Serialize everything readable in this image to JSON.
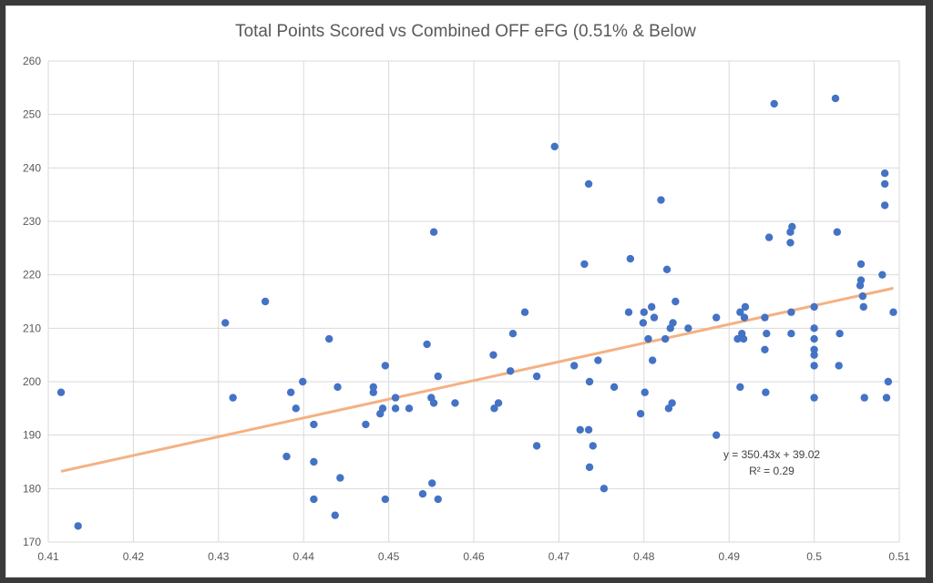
{
  "chart_data": {
    "type": "scatter",
    "title": "Total Points Scored vs Combined OFF eFG (0.51% & Below",
    "xlabel": "",
    "ylabel": "",
    "xlim": [
      0.41,
      0.51
    ],
    "ylim": [
      170,
      260
    ],
    "x_ticks": [
      0.41,
      0.42,
      0.43,
      0.44,
      0.45,
      0.46,
      0.47,
      0.48,
      0.49,
      0.5,
      0.51
    ],
    "x_tick_labels": [
      "0.41",
      "0.42",
      "0.43",
      "0.44",
      "0.45",
      "0.46",
      "0.47",
      "0.48",
      "0.49",
      "0.5",
      "0.51"
    ],
    "y_ticks": [
      170,
      180,
      190,
      200,
      210,
      220,
      230,
      240,
      250,
      260
    ],
    "y_tick_labels": [
      "170",
      "180",
      "190",
      "200",
      "210",
      "220",
      "230",
      "240",
      "250",
      "260"
    ],
    "grid": true,
    "point_color": "#4472c4",
    "trendline": {
      "slope": 350.43,
      "intercept": 39.02,
      "color": "#f4b183",
      "equation_label": "y = 350.43x + 39.02",
      "r2_label": "R² = 0.29"
    },
    "points": [
      [
        0.4115,
        198
      ],
      [
        0.4135,
        173
      ],
      [
        0.4308,
        211
      ],
      [
        0.4317,
        197
      ],
      [
        0.4355,
        215
      ],
      [
        0.438,
        186
      ],
      [
        0.4385,
        198
      ],
      [
        0.4391,
        195
      ],
      [
        0.4399,
        200
      ],
      [
        0.4412,
        192
      ],
      [
        0.4412,
        185
      ],
      [
        0.4412,
        178
      ],
      [
        0.443,
        208
      ],
      [
        0.4437,
        175
      ],
      [
        0.444,
        199
      ],
      [
        0.4443,
        182
      ],
      [
        0.4473,
        192
      ],
      [
        0.4482,
        199
      ],
      [
        0.4482,
        198
      ],
      [
        0.449,
        194
      ],
      [
        0.4493,
        195
      ],
      [
        0.4496,
        203
      ],
      [
        0.4496,
        178
      ],
      [
        0.4508,
        197
      ],
      [
        0.4508,
        195
      ],
      [
        0.4524,
        195
      ],
      [
        0.454,
        179
      ],
      [
        0.4545,
        207
      ],
      [
        0.455,
        197
      ],
      [
        0.4551,
        181
      ],
      [
        0.4553,
        228
      ],
      [
        0.4553,
        196
      ],
      [
        0.4558,
        201
      ],
      [
        0.4558,
        178
      ],
      [
        0.4578,
        196
      ],
      [
        0.4623,
        205
      ],
      [
        0.4624,
        195
      ],
      [
        0.4629,
        196
      ],
      [
        0.4643,
        202
      ],
      [
        0.4646,
        209
      ],
      [
        0.466,
        213
      ],
      [
        0.4674,
        201
      ],
      [
        0.4674,
        188
      ],
      [
        0.4695,
        244
      ],
      [
        0.4718,
        203
      ],
      [
        0.4725,
        191
      ],
      [
        0.473,
        222
      ],
      [
        0.4735,
        237
      ],
      [
        0.4735,
        191
      ],
      [
        0.4736,
        200
      ],
      [
        0.4736,
        184
      ],
      [
        0.474,
        188
      ],
      [
        0.4746,
        204
      ],
      [
        0.4753,
        180
      ],
      [
        0.4765,
        199
      ],
      [
        0.4782,
        213
      ],
      [
        0.4784,
        223
      ],
      [
        0.4796,
        194
      ],
      [
        0.4799,
        211
      ],
      [
        0.48,
        213
      ],
      [
        0.4801,
        198
      ],
      [
        0.4805,
        208
      ],
      [
        0.4809,
        214
      ],
      [
        0.481,
        204
      ],
      [
        0.4812,
        212
      ],
      [
        0.482,
        234
      ],
      [
        0.4825,
        208
      ],
      [
        0.4827,
        221
      ],
      [
        0.4829,
        195
      ],
      [
        0.4831,
        210
      ],
      [
        0.4833,
        196
      ],
      [
        0.4834,
        211
      ],
      [
        0.4837,
        215
      ],
      [
        0.4852,
        210
      ],
      [
        0.4885,
        212
      ],
      [
        0.4885,
        190
      ],
      [
        0.491,
        208
      ],
      [
        0.4913,
        213
      ],
      [
        0.4913,
        199
      ],
      [
        0.4915,
        209
      ],
      [
        0.4917,
        208
      ],
      [
        0.4918,
        212
      ],
      [
        0.4919,
        214
      ],
      [
        0.4942,
        212
      ],
      [
        0.4942,
        206
      ],
      [
        0.4943,
        198
      ],
      [
        0.4944,
        209
      ],
      [
        0.4947,
        227
      ],
      [
        0.4953,
        252
      ],
      [
        0.4972,
        228
      ],
      [
        0.4972,
        226
      ],
      [
        0.4973,
        213
      ],
      [
        0.4973,
        209
      ],
      [
        0.4974,
        229
      ],
      [
        0.5,
        214
      ],
      [
        0.5,
        210
      ],
      [
        0.5,
        208
      ],
      [
        0.5,
        206
      ],
      [
        0.5,
        205
      ],
      [
        0.5,
        203
      ],
      [
        0.5,
        197
      ],
      [
        0.5025,
        253
      ],
      [
        0.5027,
        228
      ],
      [
        0.5029,
        203
      ],
      [
        0.503,
        209
      ],
      [
        0.5054,
        218
      ],
      [
        0.5055,
        222
      ],
      [
        0.5055,
        219
      ],
      [
        0.5057,
        216
      ],
      [
        0.5058,
        214
      ],
      [
        0.5059,
        197
      ],
      [
        0.508,
        220
      ],
      [
        0.5083,
        239
      ],
      [
        0.5083,
        237
      ],
      [
        0.5083,
        233
      ],
      [
        0.5085,
        197
      ],
      [
        0.5087,
        200
      ],
      [
        0.5093,
        213
      ]
    ]
  }
}
